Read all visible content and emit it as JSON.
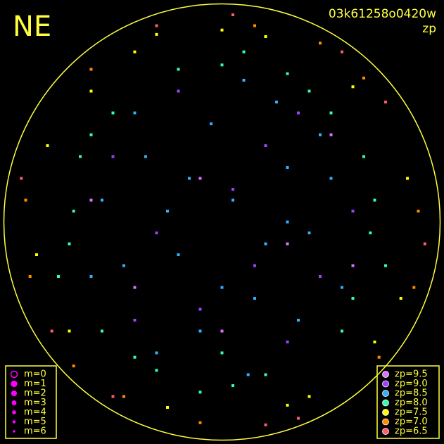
{
  "chart_data": {
    "type": "scatter",
    "title": "NE",
    "subtitle": "03k61258o0420w",
    "color_label": "zp",
    "xlim": [
      -1,
      1
    ],
    "ylim": [
      -1,
      1
    ],
    "circle_color": "#ffff40",
    "magnitudes": [
      "m=0",
      "m=1",
      "m=2",
      "m=3",
      "m=4",
      "m=5",
      "m=6"
    ],
    "series": [
      {
        "name": "zp=9.5",
        "color": "#e070ff",
        "x": [
          -0.1,
          0.3,
          -0.4,
          0.5,
          0.0,
          -0.2,
          0.6,
          -0.6
        ],
        "values": [
          0.2,
          -0.1,
          -0.3,
          0.4,
          -0.5,
          0.6,
          -0.2,
          0.1
        ]
      },
      {
        "name": "zp=9.0",
        "color": "#a040ff",
        "x": [
          -0.3,
          0.2,
          0.45,
          -0.1,
          0.05,
          -0.5,
          0.3,
          0.6,
          -0.2,
          0.15,
          -0.4,
          0.35
        ],
        "values": [
          -0.05,
          0.35,
          -0.25,
          -0.4,
          0.15,
          0.3,
          -0.55,
          0.05,
          0.6,
          -0.2,
          -0.45,
          0.5
        ]
      },
      {
        "name": "zp=8.5",
        "color": "#30b0ff",
        "x": [
          0.05,
          -0.2,
          0.3,
          -0.35,
          0.15,
          -0.05,
          0.4,
          -0.45,
          0.25,
          -0.1,
          0.5,
          -0.55,
          0.1,
          0.35,
          -0.3,
          0.2,
          -0.25,
          0.45,
          -0.4,
          0.0,
          0.55,
          -0.6,
          0.3,
          -0.15,
          0.12
        ],
        "values": [
          0.1,
          -0.15,
          0.25,
          0.3,
          -0.35,
          0.45,
          -0.05,
          -0.2,
          0.55,
          -0.5,
          0.2,
          0.1,
          0.65,
          -0.45,
          -0.6,
          -0.1,
          0.05,
          0.4,
          0.5,
          -0.3,
          -0.3,
          -0.25,
          0.0,
          0.2,
          -0.7
        ]
      },
      {
        "name": "zp=8.0",
        "color": "#30ffb0",
        "x": [
          0.7,
          -0.7,
          0.0,
          0.05,
          0.5,
          -0.5,
          0.55,
          -0.55,
          0.65,
          -0.65,
          0.3,
          -0.3,
          0.75,
          -0.75,
          0.2,
          -0.2,
          0.6,
          -0.6,
          0.1,
          -0.1,
          0.4,
          -0.4,
          0.68,
          -0.68,
          0.0
        ],
        "values": [
          0.1,
          -0.1,
          0.72,
          -0.75,
          0.5,
          0.5,
          -0.5,
          -0.5,
          0.3,
          0.3,
          0.68,
          -0.68,
          -0.2,
          -0.25,
          -0.7,
          0.7,
          -0.35,
          0.4,
          0.78,
          -0.78,
          0.6,
          -0.62,
          -0.05,
          0.05,
          -0.6
        ]
      },
      {
        "name": "zp=7.5",
        "color": "#ffff00",
        "x": [
          0.85,
          -0.85,
          0.2,
          -0.25,
          0.6,
          -0.6,
          0.7,
          -0.7,
          0.4,
          -0.4,
          0.82,
          -0.8,
          0.0,
          0.3,
          -0.3
        ],
        "values": [
          0.2,
          -0.15,
          0.85,
          -0.85,
          0.62,
          0.6,
          -0.55,
          -0.5,
          -0.8,
          0.78,
          -0.35,
          0.35,
          0.88,
          -0.84,
          0.86
        ]
      },
      {
        "name": "zp=7.0",
        "color": "#ff8c00",
        "x": [
          0.9,
          -0.9,
          0.15,
          -0.1,
          0.65,
          -0.68,
          0.72,
          -0.6,
          0.45,
          -0.45,
          0.88,
          -0.88
        ],
        "values": [
          0.05,
          0.1,
          0.9,
          -0.92,
          0.66,
          -0.66,
          -0.62,
          0.7,
          0.82,
          -0.8,
          -0.3,
          -0.25
        ]
      },
      {
        "name": "zp=6.5",
        "color": "#ff5a6e",
        "x": [
          0.93,
          -0.92,
          0.2,
          -0.3,
          0.55,
          -0.5,
          0.75,
          -0.78,
          0.05,
          0.35
        ],
        "values": [
          -0.1,
          0.2,
          -0.93,
          0.9,
          0.78,
          -0.8,
          0.55,
          -0.5,
          0.95,
          -0.9
        ]
      }
    ]
  }
}
